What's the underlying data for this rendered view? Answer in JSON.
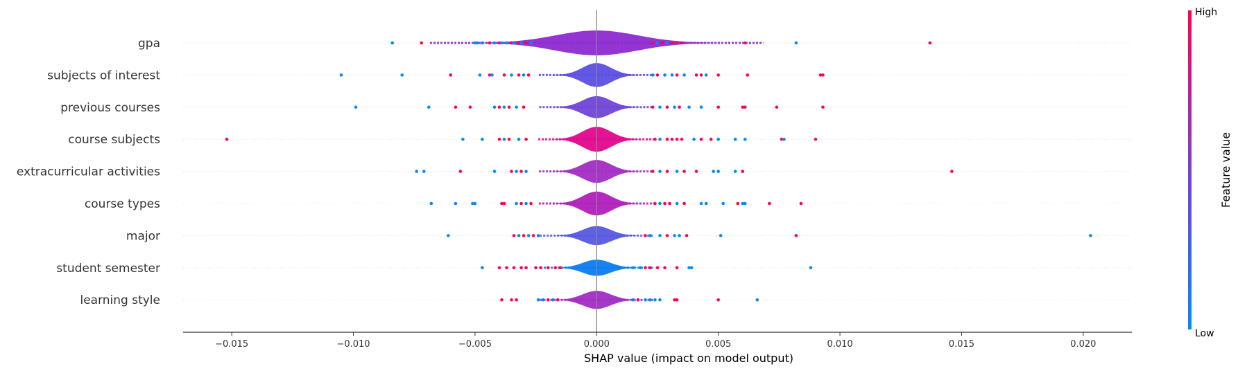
{
  "chart_data": {
    "type": "scatter",
    "subtype": "shap-violin-summary",
    "xlabel": "SHAP value (impact on model output)",
    "xlim": [
      -0.017,
      0.022
    ],
    "xticks": [
      -0.015,
      -0.01,
      -0.005,
      0.0,
      0.005,
      0.01,
      0.015,
      0.02
    ],
    "xtick_labels": [
      "−0.015",
      "−0.010",
      "−0.005",
      "0.000",
      "0.005",
      "0.010",
      "0.015",
      "0.020"
    ],
    "features": [
      {
        "name": "gpa",
        "violin_color": "#8c2ad0",
        "violin_peak": 0.06,
        "points": [
          {
            "x": -0.0084,
            "c": "low"
          },
          {
            "x": -0.0072,
            "c": "high"
          },
          {
            "x": -0.005,
            "c": "low"
          },
          {
            "x": -0.0049,
            "c": "low"
          },
          {
            "x": -0.0047,
            "c": "low"
          },
          {
            "x": -0.0044,
            "c": "high"
          },
          {
            "x": -0.0042,
            "c": "low"
          },
          {
            "x": -0.004,
            "c": "high"
          },
          {
            "x": -0.0039,
            "c": "low"
          },
          {
            "x": -0.0037,
            "c": "low"
          },
          {
            "x": -0.0035,
            "c": "high"
          },
          {
            "x": -0.0034,
            "c": "low"
          },
          {
            "x": -0.0032,
            "c": "high"
          },
          {
            "x": -0.0031,
            "c": "low"
          },
          {
            "x": -0.0029,
            "c": "high"
          },
          {
            "x": -0.0027,
            "c": "low"
          },
          {
            "x": 0.0023,
            "c": "high"
          },
          {
            "x": 0.0025,
            "c": "low"
          },
          {
            "x": 0.0027,
            "c": "high"
          },
          {
            "x": 0.0029,
            "c": "low"
          },
          {
            "x": 0.0031,
            "c": "high"
          },
          {
            "x": 0.0033,
            "c": "high"
          },
          {
            "x": 0.0035,
            "c": "high"
          },
          {
            "x": 0.0061,
            "c": "high"
          },
          {
            "x": 0.0082,
            "c": "low"
          },
          {
            "x": 0.0137,
            "c": "high"
          }
        ]
      },
      {
        "name": "subjects of interest",
        "violin_color": "#5b4ee3",
        "violin_peak": 0.0019,
        "points": [
          {
            "x": -0.0105,
            "c": "low"
          },
          {
            "x": -0.008,
            "c": "low"
          },
          {
            "x": -0.006,
            "c": "high"
          },
          {
            "x": -0.0048,
            "c": "low"
          },
          {
            "x": -0.0044,
            "c": "high"
          },
          {
            "x": -0.0043,
            "c": "low"
          },
          {
            "x": -0.0038,
            "c": "high"
          },
          {
            "x": -0.0035,
            "c": "low"
          },
          {
            "x": -0.0032,
            "c": "high"
          },
          {
            "x": -0.003,
            "c": "low"
          },
          {
            "x": -0.0028,
            "c": "high"
          },
          {
            "x": 0.0023,
            "c": "low"
          },
          {
            "x": 0.0025,
            "c": "high"
          },
          {
            "x": 0.0028,
            "c": "low"
          },
          {
            "x": 0.0031,
            "c": "low"
          },
          {
            "x": 0.0033,
            "c": "high"
          },
          {
            "x": 0.0036,
            "c": "low"
          },
          {
            "x": 0.0041,
            "c": "high"
          },
          {
            "x": 0.0043,
            "c": "high"
          },
          {
            "x": 0.0045,
            "c": "low"
          },
          {
            "x": 0.005,
            "c": "high"
          },
          {
            "x": 0.0062,
            "c": "high"
          },
          {
            "x": 0.0092,
            "c": "high"
          },
          {
            "x": 0.0093,
            "c": "high"
          }
        ]
      },
      {
        "name": "previous courses",
        "violin_color": "#6f45d8",
        "violin_peak": 0.0017,
        "points": [
          {
            "x": -0.0099,
            "c": "low"
          },
          {
            "x": -0.0069,
            "c": "low"
          },
          {
            "x": -0.0058,
            "c": "high"
          },
          {
            "x": -0.0052,
            "c": "high"
          },
          {
            "x": -0.0042,
            "c": "low"
          },
          {
            "x": -0.004,
            "c": "high"
          },
          {
            "x": -0.0038,
            "c": "low"
          },
          {
            "x": -0.0036,
            "c": "high"
          },
          {
            "x": -0.0033,
            "c": "low"
          },
          {
            "x": -0.003,
            "c": "high"
          },
          {
            "x": 0.0023,
            "c": "high"
          },
          {
            "x": 0.0026,
            "c": "low"
          },
          {
            "x": 0.0029,
            "c": "high"
          },
          {
            "x": 0.0032,
            "c": "low"
          },
          {
            "x": 0.0034,
            "c": "high"
          },
          {
            "x": 0.0038,
            "c": "low"
          },
          {
            "x": 0.0043,
            "c": "low"
          },
          {
            "x": 0.005,
            "c": "high"
          },
          {
            "x": 0.006,
            "c": "high"
          },
          {
            "x": 0.0061,
            "c": "high"
          },
          {
            "x": 0.0074,
            "c": "high"
          },
          {
            "x": 0.0093,
            "c": "high"
          }
        ]
      },
      {
        "name": "course subjects",
        "violin_color": "#e0078c",
        "violin_peak": 0.0022,
        "points": [
          {
            "x": -0.0152,
            "c": "high"
          },
          {
            "x": -0.0055,
            "c": "low"
          },
          {
            "x": -0.0047,
            "c": "low"
          },
          {
            "x": -0.004,
            "c": "high"
          },
          {
            "x": -0.0038,
            "c": "low"
          },
          {
            "x": -0.0036,
            "c": "high"
          },
          {
            "x": -0.0032,
            "c": "low"
          },
          {
            "x": -0.0029,
            "c": "high"
          },
          {
            "x": 0.0024,
            "c": "high"
          },
          {
            "x": 0.0026,
            "c": "low"
          },
          {
            "x": 0.0029,
            "c": "high"
          },
          {
            "x": 0.0031,
            "c": "high"
          },
          {
            "x": 0.0033,
            "c": "high"
          },
          {
            "x": 0.0035,
            "c": "high"
          },
          {
            "x": 0.004,
            "c": "low"
          },
          {
            "x": 0.0043,
            "c": "high"
          },
          {
            "x": 0.0047,
            "c": "high"
          },
          {
            "x": 0.005,
            "c": "low"
          },
          {
            "x": 0.0057,
            "c": "low"
          },
          {
            "x": 0.0061,
            "c": "low"
          },
          {
            "x": 0.0076,
            "c": "high"
          },
          {
            "x": 0.0077,
            "c": "low"
          },
          {
            "x": 0.009,
            "c": "high"
          }
        ]
      },
      {
        "name": "extracurricular activities",
        "violin_color": "#a32cc4",
        "violin_peak": 0.0018,
        "points": [
          {
            "x": -0.0074,
            "c": "low"
          },
          {
            "x": -0.0071,
            "c": "low"
          },
          {
            "x": -0.0056,
            "c": "high"
          },
          {
            "x": -0.0042,
            "c": "low"
          },
          {
            "x": -0.0035,
            "c": "high"
          },
          {
            "x": -0.0033,
            "c": "low"
          },
          {
            "x": -0.0031,
            "c": "high"
          },
          {
            "x": -0.0029,
            "c": "low"
          },
          {
            "x": 0.0023,
            "c": "high"
          },
          {
            "x": 0.0026,
            "c": "low"
          },
          {
            "x": 0.0029,
            "c": "high"
          },
          {
            "x": 0.0033,
            "c": "low"
          },
          {
            "x": 0.0036,
            "c": "high"
          },
          {
            "x": 0.0041,
            "c": "high"
          },
          {
            "x": 0.0048,
            "c": "low"
          },
          {
            "x": 0.005,
            "c": "low"
          },
          {
            "x": 0.0057,
            "c": "low"
          },
          {
            "x": 0.006,
            "c": "high"
          },
          {
            "x": 0.0146,
            "c": "high"
          }
        ]
      },
      {
        "name": "course types",
        "violin_color": "#b01fbc",
        "violin_peak": 0.0019,
        "points": [
          {
            "x": -0.0068,
            "c": "low"
          },
          {
            "x": -0.0058,
            "c": "low"
          },
          {
            "x": -0.0051,
            "c": "low"
          },
          {
            "x": -0.005,
            "c": "low"
          },
          {
            "x": -0.0039,
            "c": "high"
          },
          {
            "x": -0.0038,
            "c": "high"
          },
          {
            "x": -0.0033,
            "c": "low"
          },
          {
            "x": -0.0031,
            "c": "high"
          },
          {
            "x": -0.0029,
            "c": "low"
          },
          {
            "x": -0.0027,
            "c": "high"
          },
          {
            "x": 0.0024,
            "c": "high"
          },
          {
            "x": 0.0026,
            "c": "low"
          },
          {
            "x": 0.0028,
            "c": "high"
          },
          {
            "x": 0.003,
            "c": "high"
          },
          {
            "x": 0.0033,
            "c": "low"
          },
          {
            "x": 0.0036,
            "c": "high"
          },
          {
            "x": 0.0043,
            "c": "low"
          },
          {
            "x": 0.0045,
            "c": "low"
          },
          {
            "x": 0.0052,
            "c": "low"
          },
          {
            "x": 0.0058,
            "c": "high"
          },
          {
            "x": 0.006,
            "c": "low"
          },
          {
            "x": 0.0061,
            "c": "low"
          },
          {
            "x": 0.0071,
            "c": "high"
          },
          {
            "x": 0.0084,
            "c": "high"
          }
        ]
      },
      {
        "name": "major",
        "violin_color": "#5659e0",
        "violin_peak": 0.0014,
        "points": [
          {
            "x": -0.0061,
            "c": "low"
          },
          {
            "x": -0.0034,
            "c": "high"
          },
          {
            "x": -0.0032,
            "c": "low"
          },
          {
            "x": -0.003,
            "c": "high"
          },
          {
            "x": -0.0028,
            "c": "low"
          },
          {
            "x": -0.0026,
            "c": "high"
          },
          {
            "x": -0.0024,
            "c": "low"
          },
          {
            "x": 0.002,
            "c": "high"
          },
          {
            "x": 0.0022,
            "c": "low"
          },
          {
            "x": 0.0026,
            "c": "low"
          },
          {
            "x": 0.0029,
            "c": "high"
          },
          {
            "x": 0.0032,
            "c": "low"
          },
          {
            "x": 0.0034,
            "c": "low"
          },
          {
            "x": 0.0037,
            "c": "high"
          },
          {
            "x": 0.0051,
            "c": "low"
          },
          {
            "x": 0.0082,
            "c": "high"
          },
          {
            "x": 0.0203,
            "c": "low"
          }
        ]
      },
      {
        "name": "student semester",
        "violin_color": "#0a7cf0",
        "violin_peak": 0.0011,
        "points": [
          {
            "x": -0.0047,
            "c": "low"
          },
          {
            "x": -0.004,
            "c": "high"
          },
          {
            "x": -0.0037,
            "c": "high"
          },
          {
            "x": -0.0034,
            "c": "high"
          },
          {
            "x": -0.0031,
            "c": "high"
          },
          {
            "x": -0.0029,
            "c": "high"
          },
          {
            "x": -0.0025,
            "c": "high"
          },
          {
            "x": -0.0023,
            "c": "high"
          },
          {
            "x": -0.002,
            "c": "high"
          },
          {
            "x": -0.0017,
            "c": "high"
          },
          {
            "x": -0.0015,
            "c": "high"
          },
          {
            "x": 0.0015,
            "c": "low"
          },
          {
            "x": 0.0018,
            "c": "low"
          },
          {
            "x": 0.002,
            "c": "high"
          },
          {
            "x": 0.0022,
            "c": "high"
          },
          {
            "x": 0.0025,
            "c": "high"
          },
          {
            "x": 0.0028,
            "c": "high"
          },
          {
            "x": 0.0033,
            "c": "high"
          },
          {
            "x": 0.0038,
            "c": "low"
          },
          {
            "x": 0.0039,
            "c": "low"
          },
          {
            "x": 0.0088,
            "c": "low"
          }
        ]
      },
      {
        "name": "learning style",
        "violin_color": "#a02dc4",
        "violin_peak": 0.0013,
        "points": [
          {
            "x": -0.0039,
            "c": "high"
          },
          {
            "x": -0.0035,
            "c": "high"
          },
          {
            "x": -0.0033,
            "c": "high"
          },
          {
            "x": -0.0024,
            "c": "low"
          },
          {
            "x": -0.0022,
            "c": "low"
          },
          {
            "x": -0.002,
            "c": "high"
          },
          {
            "x": -0.0018,
            "c": "low"
          },
          {
            "x": -0.0016,
            "c": "high"
          },
          {
            "x": 0.0015,
            "c": "low"
          },
          {
            "x": 0.0017,
            "c": "high"
          },
          {
            "x": 0.002,
            "c": "low"
          },
          {
            "x": 0.0022,
            "c": "low"
          },
          {
            "x": 0.0024,
            "c": "low"
          },
          {
            "x": 0.0026,
            "c": "low"
          },
          {
            "x": 0.0032,
            "c": "high"
          },
          {
            "x": 0.0033,
            "c": "high"
          },
          {
            "x": 0.005,
            "c": "high"
          },
          {
            "x": 0.0066,
            "c": "low"
          }
        ]
      }
    ],
    "colorbar": {
      "label": "Feature value",
      "high_label": "High",
      "low_label": "Low",
      "high_color": "#ff0052",
      "low_color": "#008bfb"
    },
    "zero_line": true,
    "grid": false
  }
}
